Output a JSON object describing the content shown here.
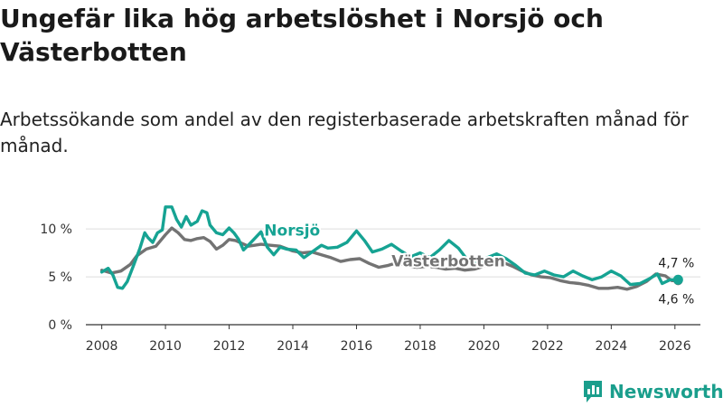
{
  "title": "Ungefär lika hög arbetslöshet i Norsjö och Västerbotten",
  "subtitle": "Arbetssökande som andel av den registerbaserade arbetskraften månad för månad.",
  "brand": {
    "name": "Newsworthy",
    "color": "#1a9e8c",
    "icon": "bar-chart-logo-icon"
  },
  "chart_data": {
    "type": "line",
    "xlim": [
      2007.5,
      2026.8
    ],
    "ylim": [
      0,
      12
    ],
    "y_ticks": [
      0,
      5,
      10
    ],
    "y_tick_labels": [
      "0 %",
      "5 %",
      "10 %"
    ],
    "x_ticks": [
      2008,
      2010,
      2012,
      2014,
      2016,
      2018,
      2020,
      2022,
      2024,
      2026
    ],
    "x_tick_labels": [
      "2008",
      "2010",
      "2012",
      "2014",
      "2016",
      "2018",
      "2020",
      "2022",
      "2024",
      "2026"
    ],
    "grid": true,
    "series": [
      {
        "name": "Västerbotten",
        "label": "Västerbotten",
        "color": "#737373",
        "end_label": "4,6 %",
        "points": [
          [
            2008.0,
            5.7
          ],
          [
            2008.3,
            5.4
          ],
          [
            2008.6,
            5.6
          ],
          [
            2008.9,
            6.3
          ],
          [
            2009.1,
            7.2
          ],
          [
            2009.4,
            7.9
          ],
          [
            2009.7,
            8.2
          ],
          [
            2010.0,
            9.4
          ],
          [
            2010.2,
            10.1
          ],
          [
            2010.4,
            9.6
          ],
          [
            2010.6,
            8.9
          ],
          [
            2010.8,
            8.8
          ],
          [
            2011.0,
            9.0
          ],
          [
            2011.2,
            9.1
          ],
          [
            2011.4,
            8.7
          ],
          [
            2011.6,
            7.9
          ],
          [
            2011.8,
            8.3
          ],
          [
            2012.0,
            8.9
          ],
          [
            2012.2,
            8.8
          ],
          [
            2012.4,
            8.5
          ],
          [
            2012.6,
            8.2
          ],
          [
            2012.8,
            8.3
          ],
          [
            2013.0,
            8.4
          ],
          [
            2013.3,
            8.3
          ],
          [
            2013.6,
            8.2
          ],
          [
            2014.0,
            7.7
          ],
          [
            2014.3,
            7.5
          ],
          [
            2014.6,
            7.6
          ],
          [
            2014.9,
            7.3
          ],
          [
            2015.2,
            7.0
          ],
          [
            2015.5,
            6.6
          ],
          [
            2015.8,
            6.8
          ],
          [
            2016.1,
            6.9
          ],
          [
            2016.4,
            6.4
          ],
          [
            2016.7,
            6.0
          ],
          [
            2017.0,
            6.2
          ],
          [
            2017.3,
            6.5
          ],
          [
            2017.6,
            6.1
          ],
          [
            2017.9,
            6.0
          ],
          [
            2018.2,
            6.1
          ],
          [
            2018.5,
            6.0
          ],
          [
            2018.8,
            5.8
          ],
          [
            2019.1,
            5.9
          ],
          [
            2019.4,
            5.7
          ],
          [
            2019.7,
            5.8
          ],
          [
            2020.0,
            6.1
          ],
          [
            2020.2,
            6.6
          ],
          [
            2020.4,
            6.8
          ],
          [
            2020.6,
            6.5
          ],
          [
            2020.9,
            6.1
          ],
          [
            2021.2,
            5.6
          ],
          [
            2021.5,
            5.2
          ],
          [
            2021.8,
            5.0
          ],
          [
            2022.1,
            4.9
          ],
          [
            2022.4,
            4.6
          ],
          [
            2022.7,
            4.4
          ],
          [
            2023.0,
            4.3
          ],
          [
            2023.3,
            4.1
          ],
          [
            2023.6,
            3.8
          ],
          [
            2023.9,
            3.8
          ],
          [
            2024.2,
            3.9
          ],
          [
            2024.5,
            3.7
          ],
          [
            2024.8,
            4.0
          ],
          [
            2025.1,
            4.5
          ],
          [
            2025.4,
            5.3
          ],
          [
            2025.7,
            5.1
          ],
          [
            2025.9,
            4.6
          ],
          [
            2026.1,
            4.6
          ]
        ]
      },
      {
        "name": "Norsjö",
        "label": "Norsjö",
        "color": "#16a393",
        "end_label": "4,7 %",
        "points": [
          [
            2008.0,
            5.5
          ],
          [
            2008.2,
            5.9
          ],
          [
            2008.35,
            5.2
          ],
          [
            2008.5,
            3.9
          ],
          [
            2008.65,
            3.8
          ],
          [
            2008.8,
            4.5
          ],
          [
            2009.0,
            6.2
          ],
          [
            2009.2,
            8.0
          ],
          [
            2009.35,
            9.6
          ],
          [
            2009.45,
            9.1
          ],
          [
            2009.6,
            8.6
          ],
          [
            2009.75,
            9.6
          ],
          [
            2009.9,
            9.9
          ],
          [
            2010.0,
            12.3
          ],
          [
            2010.2,
            12.3
          ],
          [
            2010.35,
            11.0
          ],
          [
            2010.5,
            10.2
          ],
          [
            2010.65,
            11.3
          ],
          [
            2010.8,
            10.4
          ],
          [
            2011.0,
            10.8
          ],
          [
            2011.15,
            11.9
          ],
          [
            2011.3,
            11.7
          ],
          [
            2011.4,
            10.4
          ],
          [
            2011.6,
            9.6
          ],
          [
            2011.8,
            9.4
          ],
          [
            2012.0,
            10.1
          ],
          [
            2012.15,
            9.6
          ],
          [
            2012.3,
            8.9
          ],
          [
            2012.45,
            7.8
          ],
          [
            2012.6,
            8.3
          ],
          [
            2012.8,
            9.0
          ],
          [
            2013.0,
            9.7
          ],
          [
            2013.2,
            8.1
          ],
          [
            2013.4,
            7.3
          ],
          [
            2013.6,
            8.1
          ],
          [
            2013.8,
            7.9
          ],
          [
            2014.1,
            7.8
          ],
          [
            2014.35,
            7.0
          ],
          [
            2014.6,
            7.6
          ],
          [
            2014.9,
            8.3
          ],
          [
            2015.1,
            8.0
          ],
          [
            2015.4,
            8.1
          ],
          [
            2015.7,
            8.6
          ],
          [
            2016.0,
            9.8
          ],
          [
            2016.25,
            8.8
          ],
          [
            2016.5,
            7.6
          ],
          [
            2016.8,
            7.9
          ],
          [
            2017.1,
            8.4
          ],
          [
            2017.4,
            7.7
          ],
          [
            2017.7,
            7.1
          ],
          [
            2018.0,
            7.5
          ],
          [
            2018.3,
            7.0
          ],
          [
            2018.6,
            7.8
          ],
          [
            2018.9,
            8.8
          ],
          [
            2019.2,
            8.0
          ],
          [
            2019.5,
            6.7
          ],
          [
            2019.8,
            6.3
          ],
          [
            2020.1,
            7.0
          ],
          [
            2020.4,
            7.4
          ],
          [
            2020.7,
            6.9
          ],
          [
            2021.0,
            6.2
          ],
          [
            2021.3,
            5.4
          ],
          [
            2021.6,
            5.2
          ],
          [
            2021.9,
            5.6
          ],
          [
            2022.2,
            5.2
          ],
          [
            2022.5,
            5.0
          ],
          [
            2022.8,
            5.6
          ],
          [
            2023.1,
            5.1
          ],
          [
            2023.4,
            4.7
          ],
          [
            2023.7,
            5.0
          ],
          [
            2024.0,
            5.6
          ],
          [
            2024.3,
            5.1
          ],
          [
            2024.6,
            4.2
          ],
          [
            2024.9,
            4.3
          ],
          [
            2025.2,
            4.8
          ],
          [
            2025.45,
            5.3
          ],
          [
            2025.6,
            4.3
          ],
          [
            2025.85,
            4.7
          ],
          [
            2026.1,
            4.7
          ]
        ]
      }
    ]
  }
}
